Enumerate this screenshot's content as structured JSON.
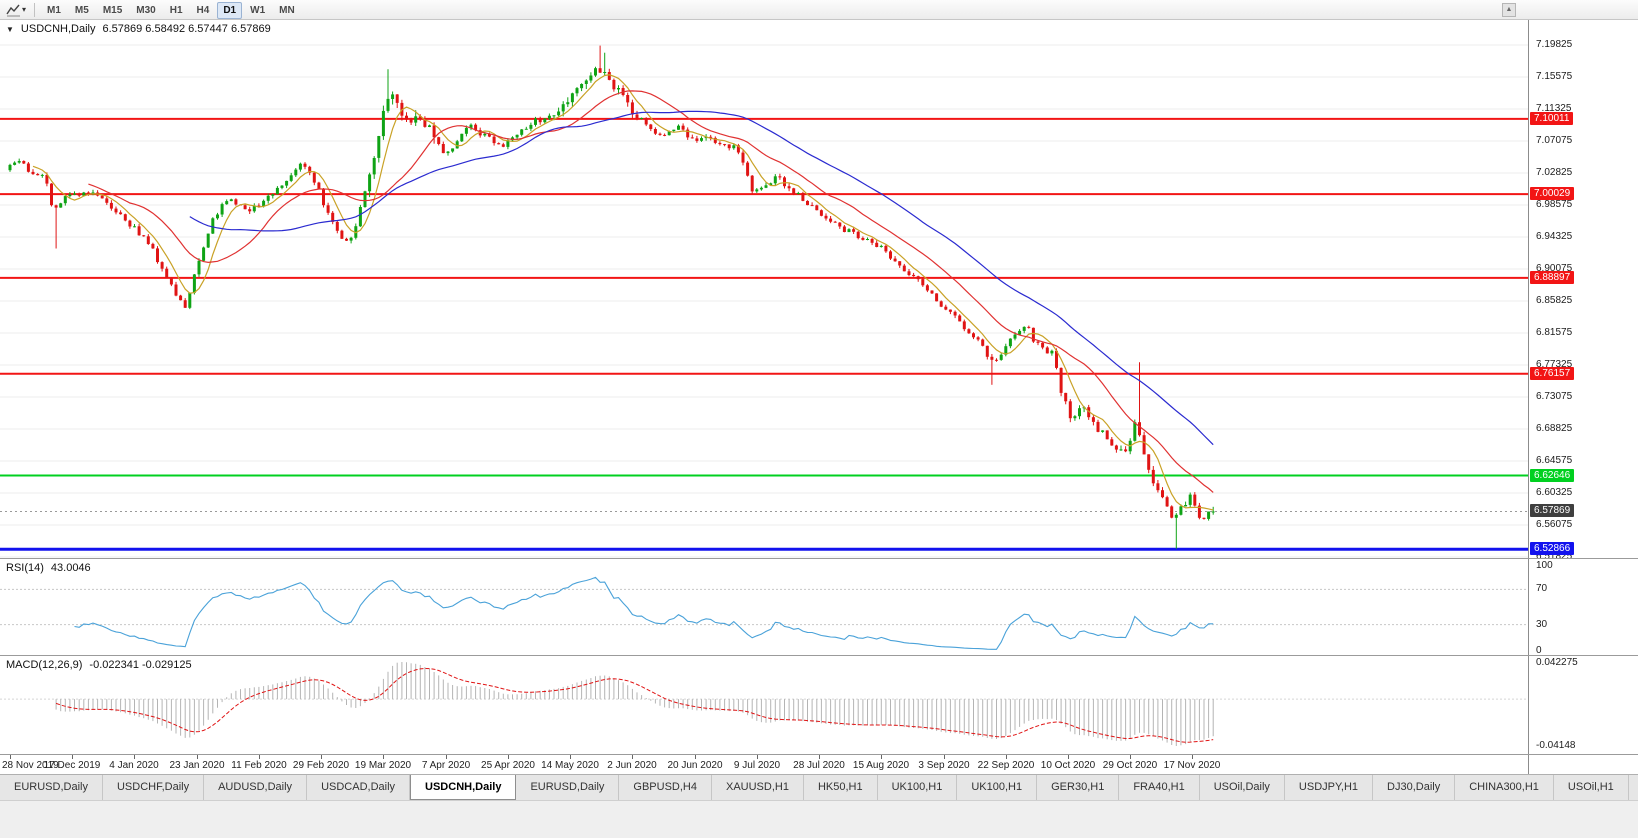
{
  "icons": {
    "title_arrow": "▼",
    "dropdown_caret": "▾",
    "scroll_up": "▲"
  },
  "window": {
    "timeframes": [
      {
        "label": "M1",
        "active": false
      },
      {
        "label": "M5",
        "active": false
      },
      {
        "label": "M15",
        "active": false
      },
      {
        "label": "M30",
        "active": false
      },
      {
        "label": "H1",
        "active": false
      },
      {
        "label": "H4",
        "active": false
      },
      {
        "label": "D1",
        "active": true
      },
      {
        "label": "W1",
        "active": false
      },
      {
        "label": "MN",
        "active": false
      }
    ]
  },
  "chart": {
    "symbol_title": "USDCNH,Daily",
    "ohlc_text": "6.57869 6.58492 6.57447 6.57869",
    "bull_color": "#0fa315",
    "bear_color": "#e01414",
    "grid_color": "#ededed",
    "moving_averages": [
      {
        "period": 6,
        "color": "#c9a227"
      },
      {
        "period": 18,
        "color": "#e03232"
      },
      {
        "period": 40,
        "color": "#2b2bd0"
      }
    ]
  },
  "price_axis": {
    "ticks": [
      "7.19825",
      "7.15575",
      "7.11325",
      "7.07075",
      "7.02825",
      "6.98575",
      "6.94325",
      "6.90075",
      "6.85825",
      "6.81575",
      "6.77325",
      "6.73075",
      "6.68825",
      "6.64575",
      "6.60325",
      "6.56075",
      "6.51825"
    ]
  },
  "levels": [
    {
      "price": 7.10011,
      "label": "7.10011",
      "color": "#f21515",
      "thickness": 2
    },
    {
      "price": 7.00029,
      "label": "7.00029",
      "color": "#f21515",
      "thickness": 2
    },
    {
      "price": 6.88897,
      "label": "6.88897",
      "color": "#f21515",
      "thickness": 2
    },
    {
      "price": 6.76157,
      "label": "6.76157",
      "color": "#f21515",
      "thickness": 2
    },
    {
      "price": 6.62646,
      "label": "6.62646",
      "color": "#00d020",
      "thickness": 2
    },
    {
      "price": 6.52866,
      "label": "6.52866",
      "color": "#1212ee",
      "thickness": 3
    }
  ],
  "current_price": {
    "price": 6.57869,
    "label": "6.57869",
    "badge_color": "#3f3f3f",
    "line_color": "#9a9a9a"
  },
  "rsi": {
    "title_text": "RSI(14)",
    "value_text": "43.0046",
    "period": 14,
    "line_color": "#4aa2d9",
    "level_color": "#c8c8c8",
    "scale_labels": [
      {
        "value": 100,
        "label": "100"
      },
      {
        "value": 70,
        "label": "70"
      },
      {
        "value": 30,
        "label": "30"
      },
      {
        "value": 0,
        "label": "0"
      }
    ],
    "dotted_levels": [
      70,
      30
    ]
  },
  "macd": {
    "title_text": "MACD(12,26,9)",
    "values_text": "-0.022341 -0.029125",
    "fast": 12,
    "slow": 26,
    "signal": 9,
    "hist_color": "#b4b4b4",
    "signal_color": "#e01414",
    "zero_color": "#d5d5d5",
    "scale_top_label": "0.042275",
    "scale_bottom_label": "-0.04148"
  },
  "chart_data": {
    "type": "candlestick",
    "symbol": "USDCNH",
    "period": "Daily",
    "title": "USDCNH,Daily",
    "visible_range": {
      "first_label": "28 Nov 2019",
      "last_label": "17 Nov 2020"
    },
    "y_axis": {
      "min": 6.51825,
      "max": 7.19825,
      "tick_step": 0.0425
    },
    "ohlc_current": {
      "open": 6.57869,
      "high": 6.58492,
      "low": 6.57447,
      "close": 6.57869
    },
    "horizontal_lines": [
      7.10011,
      7.00029,
      6.88897,
      6.76157,
      6.62646,
      6.52866
    ],
    "indicators": [
      {
        "name": "RSI",
        "period": 14,
        "last_value": 43.0046,
        "range": [
          0,
          100
        ],
        "levels": [
          30,
          70
        ]
      },
      {
        "name": "MACD",
        "fast": 12,
        "slow": 26,
        "signal": 9,
        "last_macd": -0.022341,
        "last_signal": -0.029125,
        "panel_max": 0.042275,
        "panel_min": -0.04148
      }
    ],
    "x_labels": [
      "28 Nov 2019",
      "17 Dec 2019",
      "4 Jan 2020",
      "23 Jan 2020",
      "11 Feb 2020",
      "29 Feb 2020",
      "19 Mar 2020",
      "7 Apr 2020",
      "25 Apr 2020",
      "14 May 2020",
      "2 Jun 2020",
      "20 Jun 2020",
      "9 Jul 2020",
      "28 Jul 2020",
      "15 Aug 2020",
      "3 Sep 2020",
      "22 Sep 2020",
      "10 Oct 2020",
      "29 Oct 2020",
      "17 Nov 2020"
    ],
    "bars_per_label": 13.5,
    "price_path_anchors": [
      [
        0,
        7.032
      ],
      [
        2,
        7.046
      ],
      [
        5,
        7.03
      ],
      [
        8,
        7.027
      ],
      [
        10,
        6.98
      ],
      [
        12,
        6.993
      ],
      [
        16,
        7.003
      ],
      [
        20,
        6.997
      ],
      [
        23,
        6.979
      ],
      [
        27,
        6.958
      ],
      [
        31,
        6.932
      ],
      [
        34,
        6.898
      ],
      [
        37,
        6.866
      ],
      [
        39,
        6.848
      ],
      [
        41,
        6.902
      ],
      [
        43,
        6.936
      ],
      [
        45,
        6.97
      ],
      [
        48,
        6.993
      ],
      [
        52,
        6.977
      ],
      [
        55,
        6.988
      ],
      [
        58,
        7.001
      ],
      [
        61,
        7.018
      ],
      [
        64,
        7.04
      ],
      [
        67,
        7.014
      ],
      [
        70,
        6.968
      ],
      [
        73,
        6.937
      ],
      [
        75,
        6.947
      ],
      [
        77,
        6.986
      ],
      [
        79,
        7.03
      ],
      [
        81,
        7.09
      ],
      [
        82,
        7.13
      ],
      [
        84,
        7.125
      ],
      [
        86,
        7.09
      ],
      [
        89,
        7.097
      ],
      [
        92,
        7.084
      ],
      [
        95,
        7.052
      ],
      [
        97,
        7.067
      ],
      [
        100,
        7.091
      ],
      [
        104,
        7.077
      ],
      [
        108,
        7.063
      ],
      [
        111,
        7.083
      ],
      [
        114,
        7.097
      ],
      [
        117,
        7.101
      ],
      [
        120,
        7.119
      ],
      [
        123,
        7.136
      ],
      [
        126,
        7.154
      ],
      [
        128,
        7.169
      ],
      [
        131,
        7.148
      ],
      [
        134,
        7.124
      ],
      [
        137,
        7.102
      ],
      [
        140,
        7.084
      ],
      [
        143,
        7.078
      ],
      [
        146,
        7.095
      ],
      [
        149,
        7.068
      ],
      [
        152,
        7.077
      ],
      [
        155,
        7.063
      ],
      [
        158,
        7.067
      ],
      [
        160,
        7.034
      ],
      [
        162,
        6.998
      ],
      [
        164,
        7.013
      ],
      [
        167,
        7.023
      ],
      [
        170,
        7.007
      ],
      [
        173,
        6.993
      ],
      [
        176,
        6.977
      ],
      [
        179,
        6.963
      ],
      [
        182,
        6.951
      ],
      [
        185,
        6.945
      ],
      [
        188,
        6.937
      ],
      [
        191,
        6.921
      ],
      [
        194,
        6.903
      ],
      [
        197,
        6.887
      ],
      [
        200,
        6.871
      ],
      [
        203,
        6.853
      ],
      [
        206,
        6.833
      ],
      [
        209,
        6.817
      ],
      [
        212,
        6.793
      ],
      [
        214,
        6.773
      ],
      [
        216,
        6.793
      ],
      [
        219,
        6.817
      ],
      [
        221,
        6.827
      ],
      [
        223,
        6.803
      ],
      [
        225,
        6.793
      ],
      [
        227,
        6.787
      ],
      [
        229,
        6.734
      ],
      [
        231,
        6.703
      ],
      [
        233,
        6.719
      ],
      [
        235,
        6.703
      ],
      [
        237,
        6.687
      ],
      [
        239,
        6.671
      ],
      [
        241,
        6.657
      ],
      [
        243,
        6.663
      ],
      [
        245,
        6.703
      ],
      [
        247,
        6.643
      ],
      [
        249,
        6.617
      ],
      [
        251,
        6.593
      ],
      [
        253,
        6.567
      ],
      [
        255,
        6.587
      ],
      [
        257,
        6.603
      ],
      [
        259,
        6.567
      ],
      [
        261,
        6.579
      ]
    ],
    "synthesis": {
      "candles": 262,
      "seed": 20,
      "base_vol": 0.0042,
      "vol_zones": [
        [
          78,
          92,
          2.4
        ],
        [
          118,
          136,
          1.8
        ],
        [
          228,
          256,
          1.4
        ]
      ],
      "wick_overrides": {
        "10": {
          "low": 6.928
        },
        "82": {
          "high": 7.166
        },
        "128": {
          "high": 7.1975
        },
        "129": {
          "high": 7.188
        },
        "213": {
          "low": 6.747
        },
        "245": {
          "high": 6.777
        },
        "253": {
          "low": 6.529
        }
      }
    }
  },
  "tabs": [
    {
      "label": "EURUSD,Daily",
      "active": false
    },
    {
      "label": "USDCHF,Daily",
      "active": false
    },
    {
      "label": "AUDUSD,Daily",
      "active": false
    },
    {
      "label": "USDCAD,Daily",
      "active": false
    },
    {
      "label": "USDCNH,Daily",
      "active": true
    },
    {
      "label": "EURUSD,Daily",
      "active": false
    },
    {
      "label": "GBPUSD,H4",
      "active": false
    },
    {
      "label": "XAUUSD,H1",
      "active": false
    },
    {
      "label": "HK50,H1",
      "active": false
    },
    {
      "label": "UK100,H1",
      "active": false
    },
    {
      "label": "UK100,H1",
      "active": false
    },
    {
      "label": "GER30,H1",
      "active": false
    },
    {
      "label": "FRA40,H1",
      "active": false
    },
    {
      "label": "USOil,Daily",
      "active": false
    },
    {
      "label": "USDJPY,H1",
      "active": false
    },
    {
      "label": "DJ30,Daily",
      "active": false
    },
    {
      "label": "CHINA300,H1",
      "active": false
    },
    {
      "label": "USOil,H1",
      "active": false
    }
  ]
}
